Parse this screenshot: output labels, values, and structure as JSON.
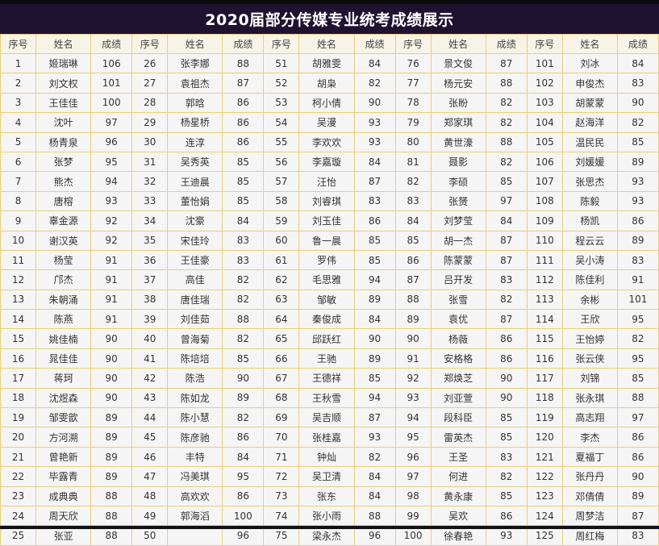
{
  "title": "2020届部分传媒专业统考成绩展示",
  "headers": [
    "序号",
    "姓名",
    "成绩"
  ],
  "rows": [
    [
      [
        1,
        "姬瑞琳",
        106
      ],
      [
        26,
        "张李娜",
        88
      ],
      [
        51,
        "胡雅雯",
        84
      ],
      [
        76,
        "景文俊",
        87
      ],
      [
        101,
        "刘冰",
        84
      ]
    ],
    [
      [
        2,
        "刘文权",
        101
      ],
      [
        27,
        "袁祖杰",
        87
      ],
      [
        52,
        "胡枭",
        82
      ],
      [
        77,
        "杨元安",
        88
      ],
      [
        102,
        "申俊杰",
        83
      ]
    ],
    [
      [
        3,
        "王佳佳",
        100
      ],
      [
        28,
        "郭晗",
        86
      ],
      [
        53,
        "柯小倩",
        90
      ],
      [
        78,
        "张盼",
        82
      ],
      [
        103,
        "胡蒙蒙",
        90
      ]
    ],
    [
      [
        4,
        "沈叶",
        97
      ],
      [
        29,
        "杨星桥",
        86
      ],
      [
        54,
        "吴漫",
        93
      ],
      [
        79,
        "郑家琪",
        82
      ],
      [
        104,
        "赵海洋",
        82
      ]
    ],
    [
      [
        5,
        "杨青泉",
        96
      ],
      [
        30,
        "连淳",
        86
      ],
      [
        55,
        "李欢欢",
        93
      ],
      [
        80,
        "黄世濠",
        88
      ],
      [
        105,
        "温民民",
        85
      ]
    ],
    [
      [
        6,
        "张梦",
        95
      ],
      [
        31,
        "吴秀英",
        85
      ],
      [
        56,
        "李嘉璇",
        84
      ],
      [
        81,
        "聂影",
        82
      ],
      [
        106,
        "刘媛媛",
        89
      ]
    ],
    [
      [
        7,
        "熊杰",
        94
      ],
      [
        32,
        "王迪晨",
        85
      ],
      [
        57,
        "汪怡",
        87
      ],
      [
        82,
        "李硕",
        85
      ],
      [
        107,
        "张思杰",
        93
      ]
    ],
    [
      [
        8,
        "唐榕",
        93
      ],
      [
        33,
        "董怡娟",
        85
      ],
      [
        58,
        "刘睿琪",
        83
      ],
      [
        83,
        "张赟",
        97
      ],
      [
        108,
        "陈毅",
        93
      ]
    ],
    [
      [
        9,
        "辜金源",
        92
      ],
      [
        34,
        "沈豪",
        84
      ],
      [
        59,
        "刘玉佳",
        86
      ],
      [
        84,
        "刘梦莹",
        84
      ],
      [
        109,
        "杨凯",
        86
      ]
    ],
    [
      [
        10,
        "谢汉英",
        92
      ],
      [
        35,
        "宋佳玲",
        83
      ],
      [
        60,
        "鲁一晨",
        85
      ],
      [
        85,
        "胡一杰",
        87
      ],
      [
        110,
        "程云云",
        89
      ]
    ],
    [
      [
        11,
        "杨莹",
        91
      ],
      [
        36,
        "王佳豪",
        83
      ],
      [
        61,
        "罗伟",
        85
      ],
      [
        86,
        "陈蒙蒙",
        87
      ],
      [
        111,
        "吴小涛",
        83
      ]
    ],
    [
      [
        12,
        "邝杰",
        91
      ],
      [
        37,
        "高佳",
        82
      ],
      [
        62,
        "毛思雅",
        94
      ],
      [
        87,
        "吕开发",
        83
      ],
      [
        112,
        "陈佳利",
        91
      ]
    ],
    [
      [
        13,
        "朱朝涌",
        91
      ],
      [
        38,
        "唐佳瑞",
        82
      ],
      [
        63,
        "邹敏",
        89
      ],
      [
        88,
        "张雪",
        82
      ],
      [
        113,
        "余彬",
        101
      ]
    ],
    [
      [
        14,
        "陈燕",
        91
      ],
      [
        39,
        "刘佳茹",
        88
      ],
      [
        64,
        "秦俊成",
        84
      ],
      [
        89,
        "袁优",
        87
      ],
      [
        114,
        "王欣",
        95
      ]
    ],
    [
      [
        15,
        "姚佳楠",
        90
      ],
      [
        40,
        "曾海菊",
        82
      ],
      [
        65,
        "邱跃红",
        90
      ],
      [
        90,
        "杨薇",
        86
      ],
      [
        115,
        "王怡婷",
        82
      ]
    ],
    [
      [
        16,
        "晁佳佳",
        90
      ],
      [
        41,
        "陈培培",
        85
      ],
      [
        66,
        "王驰",
        89
      ],
      [
        91,
        "安格格",
        86
      ],
      [
        116,
        "张云侠",
        95
      ]
    ],
    [
      [
        17,
        "蒋珂",
        90
      ],
      [
        42,
        "陈浩",
        90
      ],
      [
        67,
        "王德祥",
        85
      ],
      [
        92,
        "郑焕芝",
        90
      ],
      [
        117,
        "刘锦",
        85
      ]
    ],
    [
      [
        18,
        "沈煜森",
        90
      ],
      [
        43,
        "陈如龙",
        89
      ],
      [
        68,
        "王秋雪",
        94
      ],
      [
        93,
        "刘亚萱",
        90
      ],
      [
        118,
        "张永琪",
        88
      ]
    ],
    [
      [
        19,
        "邹雯歆",
        89
      ],
      [
        44,
        "陈小慧",
        82
      ],
      [
        69,
        "吴吉顺",
        87
      ],
      [
        94,
        "段科臣",
        85
      ],
      [
        119,
        "高志翔",
        97
      ]
    ],
    [
      [
        20,
        "方河溯",
        89
      ],
      [
        45,
        "陈彦驰",
        86
      ],
      [
        70,
        "张桂嘉",
        93
      ],
      [
        95,
        "雷英杰",
        85
      ],
      [
        120,
        "李杰",
        86
      ]
    ],
    [
      [
        21,
        "曾艳新",
        89
      ],
      [
        46,
        "丰特",
        84
      ],
      [
        71,
        "钟灿",
        82
      ],
      [
        96,
        "王圣",
        83
      ],
      [
        121,
        "夏福丁",
        86
      ]
    ],
    [
      [
        22,
        "毕露青",
        89
      ],
      [
        47,
        "冯美琪",
        95
      ],
      [
        72,
        "吴卫清",
        84
      ],
      [
        97,
        "何进",
        82
      ],
      [
        122,
        "张丹丹",
        90
      ]
    ],
    [
      [
        23,
        "成典典",
        88
      ],
      [
        48,
        "高欢欢",
        86
      ],
      [
        73,
        "张东",
        84
      ],
      [
        98,
        "黄永康",
        85
      ],
      [
        123,
        "邓倩倩",
        89
      ]
    ],
    [
      [
        24,
        "周天欣",
        88
      ],
      [
        49,
        "郭海滔",
        100
      ],
      [
        74,
        "张小雨",
        88
      ],
      [
        99,
        "吴欢",
        86
      ],
      [
        124,
        "周梦洁",
        87
      ]
    ],
    [
      [
        25,
        "张亚",
        88
      ],
      [
        50,
        "",
        96
      ],
      [
        75,
        "梁永杰",
        96
      ],
      [
        100,
        "徐春艳",
        93
      ],
      [
        125,
        "周红梅",
        83
      ]
    ]
  ]
}
